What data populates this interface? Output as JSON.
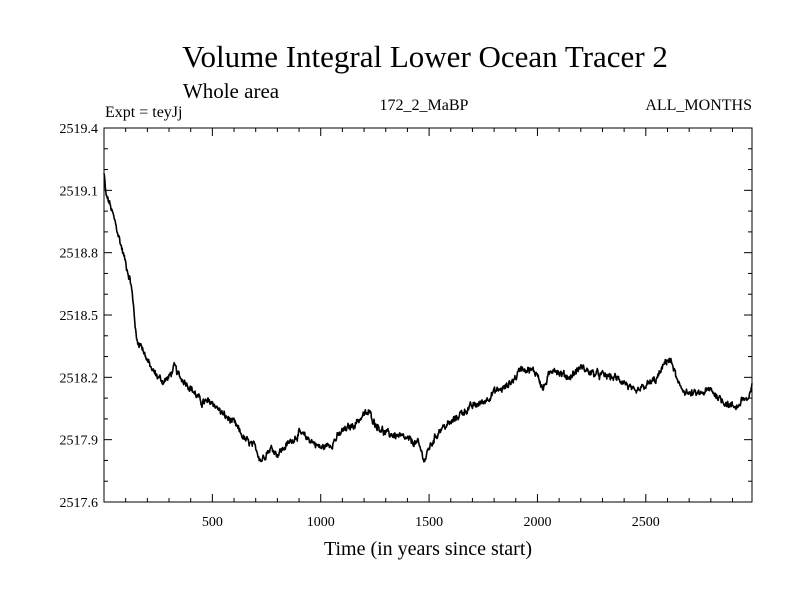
{
  "chart_data": {
    "type": "line",
    "title": "Volume Integral Lower Ocean Tracer 2",
    "subtitle": "Whole area",
    "annotations": {
      "left": "Expt = teyJj",
      "center": "172_2_MaBP",
      "right": "ALL_MONTHS"
    },
    "xlabel": "Time (in years since start)",
    "ylabel": "",
    "xlim": [
      0,
      2990
    ],
    "ylim": [
      2517.6,
      2519.4
    ],
    "x_ticks": [
      500,
      1000,
      1500,
      2000,
      2500
    ],
    "y_ticks": [
      2517.6,
      2517.9,
      2518.2,
      2518.5,
      2518.8,
      2519.1,
      2519.4
    ],
    "grid": false,
    "legend": "none",
    "series": [
      {
        "name": "Volume Integral Lower Ocean Tracer 2",
        "color": "#000000",
        "noise": 0.012,
        "x": [
          0,
          10,
          25,
          50,
          75,
          100,
          125,
          140,
          150,
          175,
          200,
          225,
          250,
          275,
          300,
          325,
          340,
          350,
          375,
          400,
          450,
          500,
          550,
          600,
          650,
          700,
          725,
          750,
          775,
          800,
          850,
          900,
          950,
          1000,
          1050,
          1100,
          1150,
          1200,
          1225,
          1250,
          1300,
          1350,
          1400,
          1450,
          1480,
          1500,
          1550,
          1600,
          1650,
          1700,
          1750,
          1800,
          1850,
          1900,
          1925,
          1950,
          2000,
          2025,
          2050,
          2075,
          2100,
          2150,
          2200,
          2250,
          2300,
          2350,
          2400,
          2450,
          2500,
          2550,
          2575,
          2600,
          2625,
          2650,
          2700,
          2750,
          2800,
          2850,
          2900,
          2925,
          2950,
          2975,
          2990
        ],
        "y": [
          2519.18,
          2519.07,
          2519.04,
          2518.95,
          2518.85,
          2518.75,
          2518.65,
          2518.5,
          2518.38,
          2518.35,
          2518.28,
          2518.23,
          2518.2,
          2518.18,
          2518.2,
          2518.25,
          2518.22,
          2518.2,
          2518.18,
          2518.15,
          2518.08,
          2518.08,
          2518.02,
          2517.98,
          2517.9,
          2517.86,
          2517.8,
          2517.84,
          2517.86,
          2517.83,
          2517.88,
          2517.93,
          2517.9,
          2517.86,
          2517.88,
          2517.94,
          2517.97,
          2518.02,
          2518.03,
          2517.98,
          2517.93,
          2517.92,
          2517.9,
          2517.88,
          2517.8,
          2517.86,
          2517.95,
          2517.98,
          2518.03,
          2518.06,
          2518.08,
          2518.13,
          2518.15,
          2518.2,
          2518.25,
          2518.24,
          2518.22,
          2518.14,
          2518.2,
          2518.25,
          2518.22,
          2518.2,
          2518.25,
          2518.22,
          2518.21,
          2518.2,
          2518.18,
          2518.12,
          2518.16,
          2518.19,
          2518.24,
          2518.29,
          2518.26,
          2518.16,
          2518.12,
          2518.12,
          2518.14,
          2518.09,
          2518.06,
          2518.06,
          2518.1,
          2518.09,
          2518.15
        ]
      }
    ]
  }
}
